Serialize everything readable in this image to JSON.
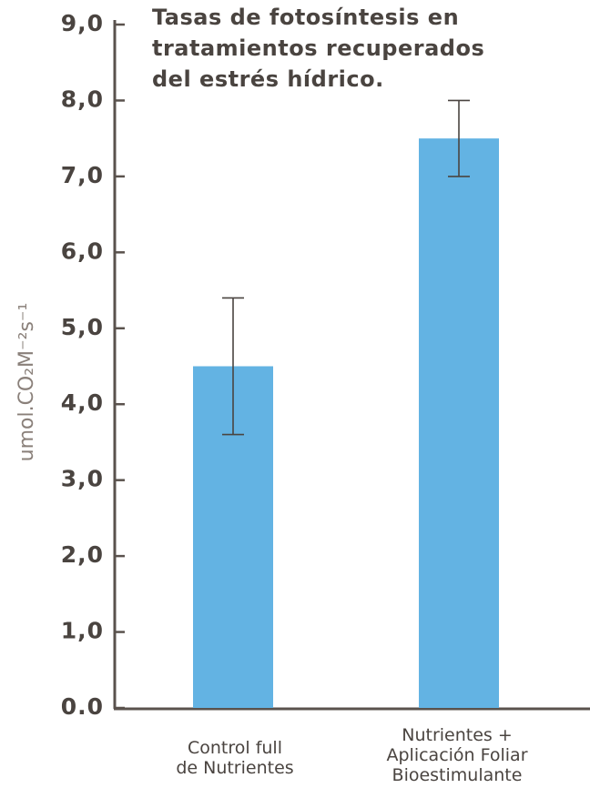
{
  "chart_data": {
    "type": "bar",
    "title": "Tasas de fotosíntesis en\ntratamientos recuperados\ndel estrés hídrico.",
    "y_label": "umol.CO₂M⁻²s⁻¹",
    "categories": [
      "Control full\nde Nutrientes",
      "Nutrientes +\nAplicación Foliar\nBioestimulante"
    ],
    "values": [
      4.5,
      7.5
    ],
    "errors": [
      0.9,
      0.5
    ],
    "color": "#63b3e3",
    "ylim": [
      0,
      9
    ],
    "yticks": [
      {
        "value": 0,
        "label": "0.0"
      },
      {
        "value": 1,
        "label": "1,0"
      },
      {
        "value": 2,
        "label": "2,0"
      },
      {
        "value": 3,
        "label": "3,0"
      },
      {
        "value": 4,
        "label": "4,0"
      },
      {
        "value": 5,
        "label": "5,0"
      },
      {
        "value": 6,
        "label": "6,0"
      },
      {
        "value": 7,
        "label": "7,0"
      },
      {
        "value": 8,
        "label": "8,0"
      },
      {
        "value": 9,
        "label": "9,0"
      }
    ],
    "grid": false
  }
}
